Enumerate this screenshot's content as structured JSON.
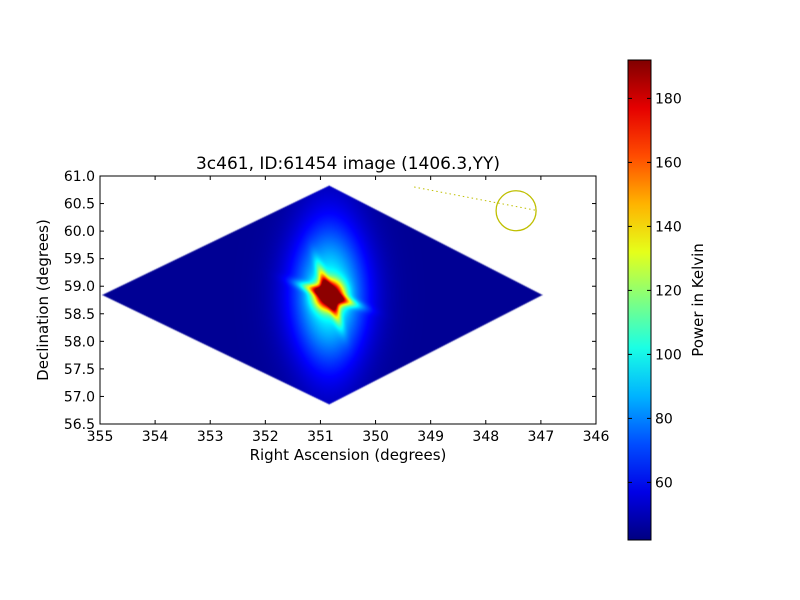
{
  "chart_data": {
    "type": "heatmap",
    "title": "3c461, ID:61454 image (1406.3,YY)",
    "xlabel": "Right Ascension (degrees)",
    "ylabel": "Declination (degrees)",
    "xlim": [
      355,
      346
    ],
    "ylim": [
      56.5,
      61.0
    ],
    "xticks": [
      "355",
      "354",
      "353",
      "352",
      "351",
      "350",
      "349",
      "348",
      "347",
      "346"
    ],
    "yticks": [
      "56.5",
      "57.0",
      "57.5",
      "58.0",
      "58.5",
      "59.0",
      "59.5",
      "60.0",
      "60.5",
      "61.0"
    ],
    "colorbar": {
      "label": "Power in Kelvin",
      "range": [
        42,
        192
      ],
      "ticks": [
        "60",
        "80",
        "100",
        "120",
        "140",
        "160",
        "180"
      ],
      "colormap": "jet"
    },
    "peak": {
      "ra": 350.85,
      "dec": 58.85,
      "value": 190
    },
    "background_level": 45,
    "coverage_diamond": {
      "left": [
        355.0,
        58.85
      ],
      "top": [
        350.85,
        60.85
      ],
      "right": [
        346.95,
        58.85
      ],
      "bottom": [
        350.85,
        56.85
      ]
    },
    "beam_marker": {
      "ra": 347.45,
      "dec": 60.37,
      "color": "#bfbf00"
    },
    "dotted_line": {
      "from": [
        349.3,
        60.8
      ],
      "to": [
        347.1,
        60.38
      ],
      "color": "#bfbf00"
    }
  }
}
